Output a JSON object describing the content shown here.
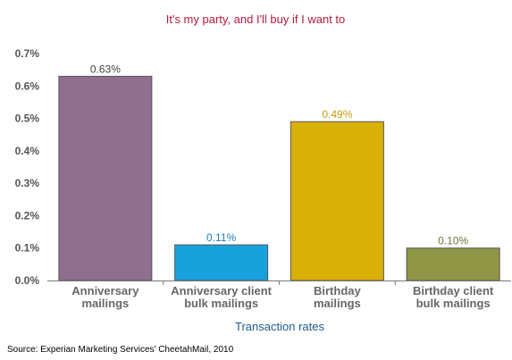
{
  "chart_data": {
    "type": "bar",
    "title": "It's my party, and I'll buy if I want to",
    "xlabel": "Transaction rates",
    "ylabel": "",
    "ylim": [
      0,
      0.7
    ],
    "yticks": [
      0.0,
      0.1,
      0.2,
      0.3,
      0.4,
      0.5,
      0.6,
      0.7
    ],
    "ytick_labels": [
      "0.0%",
      "0.1%",
      "0.2%",
      "0.3%",
      "0.4%",
      "0.5%",
      "0.6%",
      "0.7%"
    ],
    "categories": [
      [
        "Anniversary",
        "mailings"
      ],
      [
        "Anniversary client",
        "bulk mailings"
      ],
      [
        "Birthday",
        "mailings"
      ],
      [
        "Birthday client",
        "bulk mailings"
      ]
    ],
    "values": [
      0.63,
      0.11,
      0.49,
      0.1
    ],
    "data_labels": [
      "0.63%",
      "0.11%",
      "0.49%",
      "0.10%"
    ],
    "colors": [
      "#8f6e8e",
      "#18a2dc",
      "#d9b008",
      "#8f9645"
    ],
    "label_colors": [
      "#444444",
      "#1a7fb0",
      "#c39c0a",
      "#6f7736"
    ],
    "grid": false,
    "legend": "none",
    "source": "Source: Experian Marketing Services' CheetahMail, 2010"
  }
}
